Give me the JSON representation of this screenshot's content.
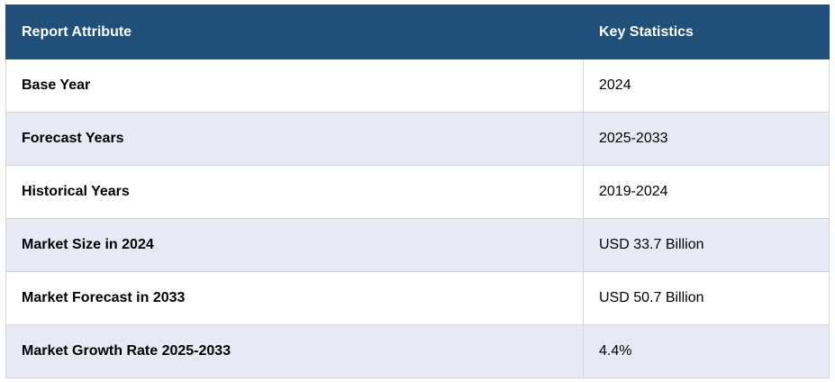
{
  "table": {
    "header": [
      "Report Attribute",
      "Key Statistics"
    ],
    "rows": [
      [
        "Base Year",
        "2024"
      ],
      [
        "Forecast Years",
        "2025-2033"
      ],
      [
        "Historical Years",
        "2019-2024"
      ],
      [
        "Market Size in 2024",
        "USD 33.7 Billion"
      ],
      [
        "Market Forecast in 2033",
        "USD 50.7 Billion"
      ],
      [
        "Market Growth Rate 2025-2033",
        "4.4%"
      ]
    ]
  }
}
